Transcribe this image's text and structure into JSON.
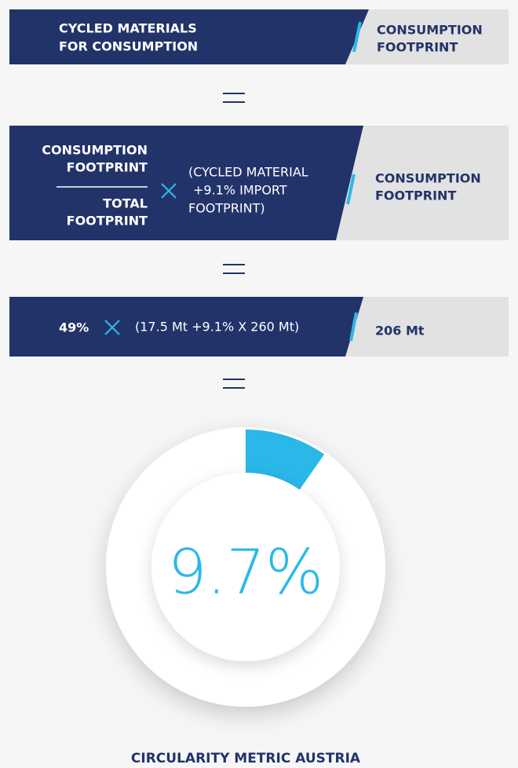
{
  "row1": {
    "left": [
      "CYCLED MATERIALS",
      "FOR CONSUMPTION"
    ],
    "right": [
      "CONSUMPTION",
      "FOOTPRINT"
    ]
  },
  "row2": {
    "numerator": [
      "CONSUMPTION",
      "FOOTPRINT"
    ],
    "denominator": [
      "TOTAL",
      "FOOTPRINT"
    ],
    "factor": [
      "(CYCLED MATERIAL",
      "+9.1% IMPORT",
      "FOOTPRINT)"
    ],
    "right": [
      "CONSUMPTION",
      "FOOTPRINT"
    ]
  },
  "row3": {
    "share": "49%",
    "factor": "(17.5 Mt +9.1% X 260 Mt)",
    "right": "206 Mt"
  },
  "donut": {
    "value": 9.7,
    "label": "9.7%"
  },
  "title": "CIRCULARITY METRIC AUSTRIA"
}
